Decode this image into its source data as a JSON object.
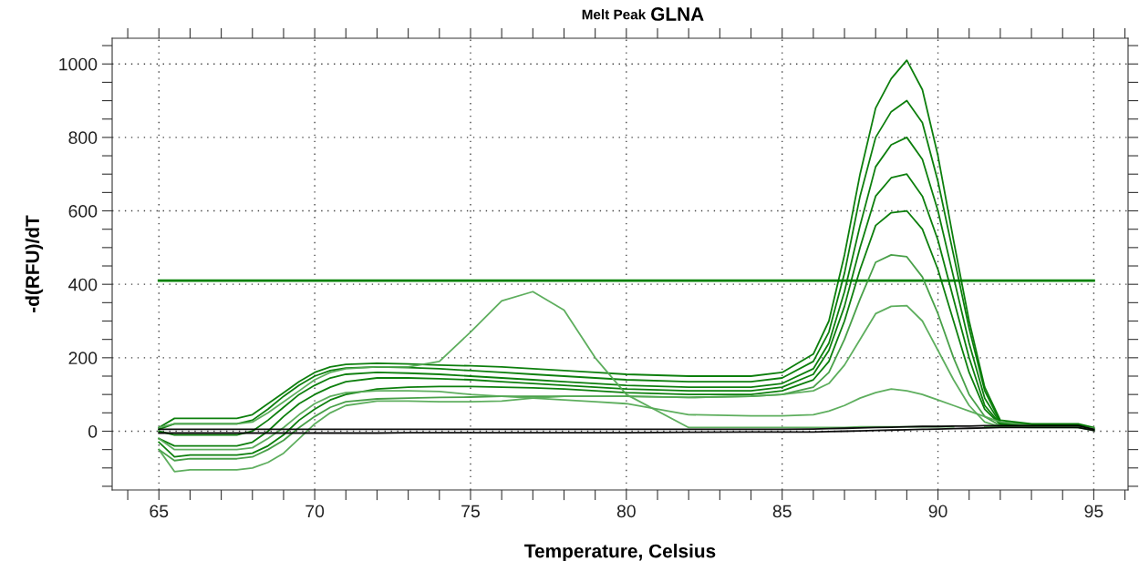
{
  "chart_data": {
    "type": "line",
    "title": "GLNA",
    "subtitle": "Melt Peak",
    "xlabel": "Temperature, Celsius",
    "ylabel": "-d(RFU)/dT",
    "x": [
      65,
      65.5,
      66,
      67,
      67.5,
      68,
      68.5,
      69,
      69.5,
      70,
      70.5,
      71,
      72,
      73,
      74,
      75,
      76,
      77,
      78,
      79,
      80,
      82,
      84,
      85,
      86,
      86.5,
      87,
      87.5,
      88,
      88.5,
      89,
      89.5,
      90,
      90.5,
      91,
      91.5,
      92,
      93,
      94,
      94.5,
      95
    ],
    "series": [
      {
        "color": "#007800",
        "values": [
          10,
          35,
          35,
          35,
          35,
          45,
          75,
          105,
          135,
          160,
          175,
          182,
          185,
          183,
          180,
          178,
          175,
          170,
          165,
          160,
          155,
          150,
          150,
          160,
          210,
          300,
          480,
          700,
          880,
          960,
          1010,
          930,
          750,
          520,
          300,
          120,
          30,
          20,
          20,
          20,
          10
        ]
      },
      {
        "color": "#007800",
        "values": [
          5,
          20,
          20,
          20,
          20,
          30,
          60,
          95,
          125,
          150,
          165,
          172,
          175,
          173,
          170,
          165,
          160,
          155,
          150,
          145,
          140,
          135,
          135,
          145,
          190,
          270,
          430,
          640,
          800,
          870,
          900,
          840,
          680,
          480,
          280,
          110,
          25,
          18,
          18,
          18,
          8
        ]
      },
      {
        "color": "#007800",
        "values": [
          0,
          -10,
          -10,
          -10,
          -10,
          0,
          30,
          65,
          100,
          125,
          145,
          155,
          160,
          158,
          155,
          150,
          145,
          140,
          135,
          130,
          125,
          120,
          120,
          130,
          170,
          240,
          380,
          560,
          720,
          780,
          800,
          740,
          600,
          420,
          240,
          90,
          22,
          16,
          16,
          16,
          6
        ]
      },
      {
        "color": "#007800",
        "values": [
          -20,
          -40,
          -40,
          -40,
          -40,
          -30,
          0,
          40,
          75,
          100,
          120,
          135,
          145,
          145,
          143,
          140,
          135,
          130,
          125,
          120,
          115,
          110,
          110,
          120,
          155,
          220,
          340,
          500,
          640,
          690,
          700,
          640,
          520,
          360,
          200,
          70,
          20,
          15,
          15,
          15,
          5
        ]
      },
      {
        "color": "#007800",
        "values": [
          -30,
          -70,
          -65,
          -65,
          -65,
          -60,
          -40,
          -10,
          30,
          60,
          85,
          100,
          115,
          120,
          122,
          122,
          120,
          118,
          115,
          110,
          105,
          100,
          100,
          110,
          140,
          190,
          300,
          440,
          560,
          595,
          600,
          550,
          440,
          300,
          160,
          60,
          18,
          14,
          14,
          14,
          4
        ]
      },
      {
        "color": "#3f9b3f",
        "values": [
          -50,
          -80,
          -75,
          -75,
          -75,
          -70,
          -50,
          -25,
          10,
          40,
          65,
          80,
          88,
          90,
          92,
          93,
          95,
          95,
          95,
          95,
          95,
          92,
          95,
          100,
          120,
          160,
          250,
          360,
          460,
          480,
          475,
          420,
          320,
          200,
          100,
          40,
          15,
          12,
          12,
          12,
          3
        ]
      },
      {
        "color": "#55aa55",
        "values": [
          -50,
          -110,
          -105,
          -105,
          -105,
          -100,
          -85,
          -60,
          -20,
          20,
          50,
          70,
          82,
          82,
          80,
          80,
          82,
          90,
          95,
          95,
          95,
          92,
          95,
          100,
          110,
          130,
          180,
          250,
          320,
          340,
          342,
          300,
          220,
          140,
          70,
          25,
          12,
          10,
          10,
          10,
          2
        ]
      },
      {
        "color": "#55aa55",
        "values": [
          -20,
          -50,
          -50,
          -50,
          -50,
          -45,
          -20,
          10,
          45,
          75,
          95,
          105,
          110,
          110,
          108,
          100,
          95,
          90,
          85,
          80,
          75,
          45,
          42,
          42,
          45,
          55,
          70,
          90,
          105,
          115,
          110,
          100,
          85,
          70,
          55,
          40,
          25,
          15,
          12,
          10,
          5
        ]
      },
      {
        "color": "#55aa55",
        "values": [
          10,
          20,
          20,
          20,
          20,
          25,
          50,
          80,
          110,
          140,
          160,
          170,
          175,
          175,
          190,
          270,
          355,
          380,
          330,
          200,
          100,
          10,
          10,
          10,
          10,
          10,
          10,
          12,
          12,
          12,
          12,
          12,
          12,
          12,
          null,
          12,
          12,
          12,
          12,
          12,
          8
        ]
      },
      {
        "color": "#000000",
        "values": [
          5,
          5,
          5,
          5,
          5,
          5,
          5,
          5,
          5,
          5,
          5,
          5,
          5,
          5,
          5,
          5,
          5,
          5,
          5,
          5,
          5,
          5,
          5,
          5,
          6,
          7,
          8,
          9,
          10,
          11,
          12,
          13,
          13,
          14,
          14,
          15,
          15,
          15,
          15,
          15,
          5
        ]
      },
      {
        "color": "#000000",
        "values": [
          -5,
          -5,
          -5,
          -5,
          -5,
          -5,
          -5,
          -5,
          -5,
          -5,
          -5,
          -5,
          -5,
          -4,
          -4,
          -4,
          -4,
          -4,
          -4,
          -4,
          -4,
          -3,
          -2,
          -2,
          -2,
          -1,
          0,
          1,
          2,
          3,
          4,
          5,
          6,
          7,
          8,
          9,
          10,
          10,
          10,
          10,
          2
        ]
      }
    ],
    "ref_lines": [
      {
        "axis": "y",
        "value": 410,
        "color": "#008000"
      }
    ],
    "xlim": [
      63.5,
      96.1
    ],
    "ylim": [
      -160,
      1070
    ],
    "xticks": [
      {
        "value": 64,
        "label": null
      },
      65,
      {
        "value": 66,
        "label": null
      },
      {
        "value": 67,
        "label": null
      },
      {
        "value": 68,
        "label": null
      },
      {
        "value": 69,
        "label": null
      },
      70,
      {
        "value": 71,
        "label": null
      },
      {
        "value": 72,
        "label": null
      },
      {
        "value": 73,
        "label": null
      },
      {
        "value": 74,
        "label": null
      },
      75,
      {
        "value": 76,
        "label": null
      },
      {
        "value": 77,
        "label": null
      },
      {
        "value": 78,
        "label": null
      },
      {
        "value": 79,
        "label": null
      },
      80,
      {
        "value": 81,
        "label": null
      },
      {
        "value": 82,
        "label": null
      },
      {
        "value": 83,
        "label": null
      },
      {
        "value": 84,
        "label": null
      },
      85,
      {
        "value": 86,
        "label": null
      },
      {
        "value": 87,
        "label": null
      },
      {
        "value": 88,
        "label": null
      },
      {
        "value": 89,
        "label": null
      },
      90,
      {
        "value": 91,
        "label": null
      },
      {
        "value": 92,
        "label": null
      },
      {
        "value": 93,
        "label": null
      },
      {
        "value": 94,
        "label": null
      },
      95,
      {
        "value": 96,
        "label": null
      }
    ],
    "yticks": [
      {
        "value": -150,
        "label": null
      },
      {
        "value": -100,
        "label": null
      },
      {
        "value": -50,
        "label": null
      },
      0,
      {
        "value": 50,
        "label": null
      },
      {
        "value": 100,
        "label": null
      },
      {
        "value": 150,
        "label": null
      },
      200,
      {
        "value": 250,
        "label": null
      },
      {
        "value": 300,
        "label": null
      },
      {
        "value": 350,
        "label": null
      },
      400,
      {
        "value": 450,
        "label": null
      },
      {
        "value": 500,
        "label": null
      },
      {
        "value": 550,
        "label": null
      },
      600,
      {
        "value": 650,
        "label": null
      },
      {
        "value": 700,
        "label": null
      },
      {
        "value": 750,
        "label": null
      },
      800,
      {
        "value": 850,
        "label": null
      },
      {
        "value": 900,
        "label": null
      },
      {
        "value": 950,
        "label": null
      },
      1000,
      {
        "value": 1050,
        "label": null
      }
    ],
    "grid": true,
    "line_style": "solid",
    "marker": "none",
    "legend": false
  }
}
